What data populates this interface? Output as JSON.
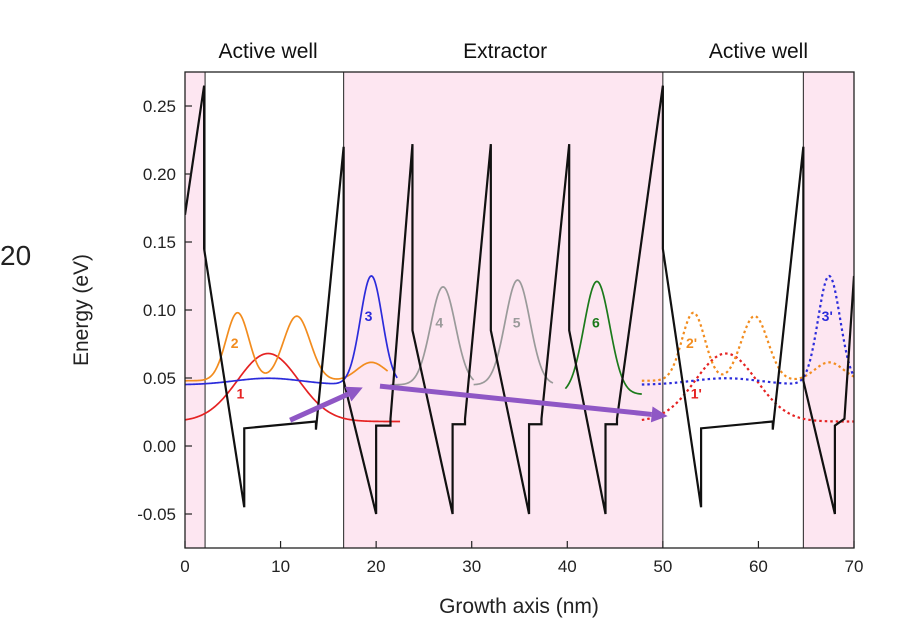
{
  "side_text": "20",
  "chart_data": {
    "type": "line",
    "xlabel": "Growth axis (nm)",
    "ylabel": "Energy (eV)",
    "xlim": [
      0,
      70
    ],
    "ylim": [
      -0.075,
      0.275
    ],
    "xticks": [
      0,
      10,
      20,
      30,
      40,
      50,
      60,
      70
    ],
    "yticks": [
      -0.05,
      0.0,
      0.05,
      0.1,
      0.15,
      0.2,
      0.25
    ],
    "ytick_labels": [
      "-0.05",
      "0.00",
      "0.05",
      "0.10",
      "0.15",
      "0.20",
      "0.25"
    ],
    "region_labels": [
      {
        "text": "Active well",
        "x": 8.7
      },
      {
        "text": "Extractor",
        "x": 33.5
      },
      {
        "text": "Active well",
        "x": 60.0
      }
    ],
    "regions": [
      {
        "x0": 0,
        "x1": 2.1,
        "color": "#fde6f1"
      },
      {
        "x0": 16.6,
        "x1": 50.0,
        "color": "#fde6f1"
      },
      {
        "x0": 64.7,
        "x1": 70,
        "color": "#fde6f1"
      }
    ],
    "region_boundaries": [
      2.1,
      16.6,
      50.0,
      64.7
    ],
    "band_profile": {
      "color": "#111111",
      "points": [
        [
          0,
          0.17
        ],
        [
          2.0,
          0.265
        ],
        [
          2.0,
          0.145
        ],
        [
          6.2,
          -0.045
        ],
        [
          6.2,
          0.013
        ],
        [
          13.7,
          0.018
        ],
        [
          13.7,
          0.012
        ],
        [
          16.6,
          0.22
        ],
        [
          16.6,
          0.048
        ],
        [
          20.0,
          -0.05
        ],
        [
          20.0,
          0.015
        ],
        [
          21.5,
          0.015
        ],
        [
          21.5,
          0.02
        ],
        [
          23.8,
          0.222
        ],
        [
          23.8,
          0.085
        ],
        [
          28.0,
          -0.05
        ],
        [
          28.0,
          0.016
        ],
        [
          29.3,
          0.016
        ],
        [
          29.3,
          0.02
        ],
        [
          32.0,
          0.222
        ],
        [
          32.0,
          0.085
        ],
        [
          36.0,
          -0.05
        ],
        [
          36.0,
          0.016
        ],
        [
          37.3,
          0.016
        ],
        [
          37.3,
          0.02
        ],
        [
          40.2,
          0.222
        ],
        [
          40.2,
          0.085
        ],
        [
          44.0,
          -0.05
        ],
        [
          44.0,
          0.016
        ],
        [
          45.2,
          0.016
        ],
        [
          45.2,
          0.02
        ],
        [
          50.0,
          0.265
        ],
        [
          50.0,
          0.145
        ],
        [
          54.0,
          -0.045
        ],
        [
          54.0,
          0.013
        ],
        [
          61.5,
          0.018
        ],
        [
          61.5,
          0.012
        ],
        [
          64.7,
          0.22
        ],
        [
          64.7,
          0.048
        ],
        [
          68.0,
          -0.05
        ],
        [
          68.0,
          0.015
        ],
        [
          69.0,
          0.02
        ],
        [
          70.0,
          0.125
        ]
      ]
    },
    "series": [
      {
        "name": "1",
        "color": "#e52222",
        "dashed": false,
        "baseline": 0.018,
        "amp": 0.05,
        "x_range": [
          0,
          22.5
        ],
        "components": [
          {
            "c": 8.7,
            "w": 3.2,
            "a": 1.0
          }
        ],
        "label_xy": [
          5.8,
          0.035
        ]
      },
      {
        "name": "2",
        "color": "#f28c1e",
        "dashed": false,
        "baseline": 0.048,
        "amp": 0.05,
        "x_range": [
          0,
          21.2
        ],
        "components": [
          {
            "c": 5.5,
            "w": 1.2,
            "a": 1.0
          },
          {
            "c": 11.7,
            "w": 1.4,
            "a": 0.95
          },
          {
            "c": 19.5,
            "w": 1.5,
            "a": 0.27
          }
        ],
        "label_xy": [
          5.2,
          0.072
        ]
      },
      {
        "name": "3",
        "color": "#2b2bdb",
        "dashed": false,
        "baseline": 0.045,
        "amp": 0.08,
        "x_range": [
          0,
          22.2
        ],
        "components": [
          {
            "c": 19.5,
            "w": 1.15,
            "a": 1.0
          },
          {
            "c": 8.7,
            "w": 3.5,
            "a": 0.06
          }
        ],
        "label_xy": [
          19.2,
          0.092
        ]
      },
      {
        "name": "4",
        "color": "#9a9a9a",
        "dashed": false,
        "baseline": 0.045,
        "amp": 0.072,
        "x_range": [
          21.5,
          30.2
        ],
        "components": [
          {
            "c": 27.0,
            "w": 1.3,
            "a": 1.0
          }
        ],
        "label_xy": [
          26.6,
          0.087
        ]
      },
      {
        "name": "5",
        "color": "#9a9a9a",
        "dashed": false,
        "baseline": 0.045,
        "amp": 0.077,
        "x_range": [
          30.2,
          38.5
        ],
        "components": [
          {
            "c": 34.8,
            "w": 1.3,
            "a": 1.0
          }
        ],
        "label_xy": [
          34.7,
          0.087
        ]
      },
      {
        "name": "6",
        "color": "#1b7a1b",
        "dashed": false,
        "baseline": 0.038,
        "amp": 0.083,
        "x_range": [
          39.8,
          47.8
        ],
        "components": [
          {
            "c": 43.1,
            "w": 1.35,
            "a": 1.0
          }
        ],
        "label_xy": [
          43.0,
          0.087
        ]
      },
      {
        "name": "1'",
        "color": "#e52222",
        "dashed": true,
        "baseline": 0.018,
        "amp": 0.05,
        "x_range": [
          47.8,
          70
        ],
        "components": [
          {
            "c": 56.6,
            "w": 3.2,
            "a": 1.0
          }
        ],
        "label_xy": [
          53.5,
          0.035
        ]
      },
      {
        "name": "2'",
        "color": "#f28c1e",
        "dashed": true,
        "baseline": 0.048,
        "amp": 0.05,
        "x_range": [
          47.8,
          70
        ],
        "components": [
          {
            "c": 53.2,
            "w": 1.2,
            "a": 1.0
          },
          {
            "c": 59.6,
            "w": 1.4,
            "a": 0.95
          },
          {
            "c": 67.4,
            "w": 1.5,
            "a": 0.27
          }
        ],
        "label_xy": [
          53.0,
          0.072
        ]
      },
      {
        "name": "3'",
        "color": "#2b2bdb",
        "dashed": true,
        "baseline": 0.045,
        "amp": 0.08,
        "x_range": [
          47.8,
          70
        ],
        "components": [
          {
            "c": 67.4,
            "w": 1.15,
            "a": 1.0
          },
          {
            "c": 56.6,
            "w": 3.5,
            "a": 0.06
          }
        ],
        "label_xy": [
          67.2,
          0.092
        ]
      }
    ],
    "arrows": [
      {
        "from": [
          11.0,
          0.019
        ],
        "to": [
          18.6,
          0.043
        ],
        "color": "#8f57c5"
      },
      {
        "from": [
          20.4,
          0.044
        ],
        "to": [
          50.5,
          0.022
        ],
        "color": "#8f57c5"
      }
    ]
  }
}
